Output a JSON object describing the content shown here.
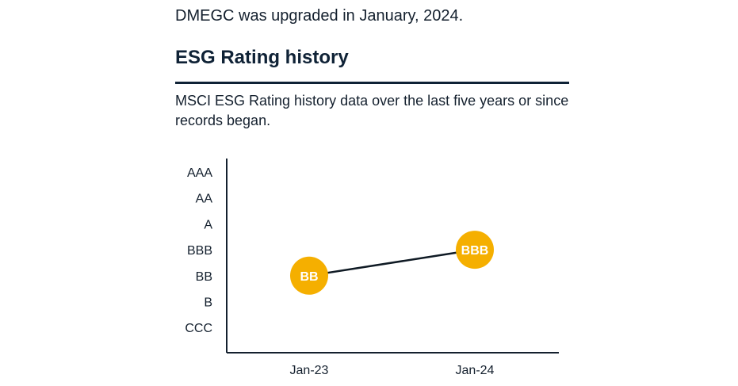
{
  "intro_text": "DMEGC was upgraded in January, 2024.",
  "section_title": "ESG Rating history",
  "description": "MSCI ESG Rating history data over the last five years or since records began.",
  "colors": {
    "marker": "#F5AF00",
    "line": "#0f1a24",
    "axis": "#14202e",
    "marker_text": "#ffffff"
  },
  "chart_data": {
    "type": "line",
    "title": "ESG Rating history",
    "xlabel": "",
    "ylabel": "",
    "y_categories": [
      "CCC",
      "B",
      "BB",
      "BBB",
      "A",
      "AA",
      "AAA"
    ],
    "x": [
      "Jan-23",
      "Jan-24"
    ],
    "series": [
      {
        "name": "MSCI ESG Rating",
        "values": [
          "BB",
          "BBB"
        ]
      }
    ],
    "grid": false
  }
}
